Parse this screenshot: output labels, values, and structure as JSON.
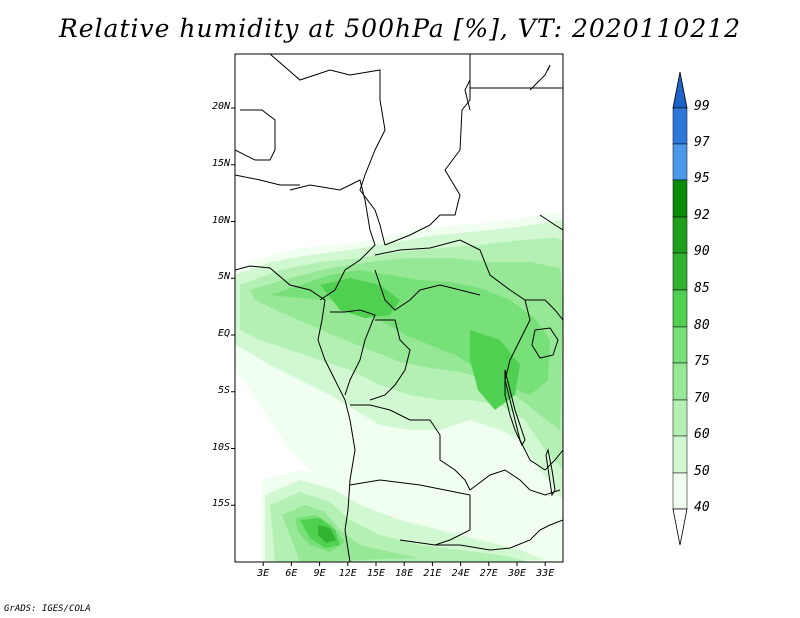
{
  "title": "Relative humidity at 500hPa [%], VT: 2020110212",
  "credit": "GrADS: IGES/COLA",
  "map": {
    "y_labels": [
      "20N",
      "15N",
      "10N",
      "5N",
      "EQ",
      "5S",
      "10S",
      "15S"
    ],
    "x_labels": [
      "3E",
      "6E",
      "9E",
      "12E",
      "15E",
      "18E",
      "21E",
      "24E",
      "27E",
      "30E",
      "33E"
    ],
    "lon_range": [
      0,
      35
    ],
    "lat_range": [
      -20,
      25
    ]
  },
  "colorbar": {
    "labels": [
      "99",
      "97",
      "95",
      "92",
      "90",
      "85",
      "80",
      "75",
      "70",
      "60",
      "50",
      "40"
    ],
    "colors": {
      "above_99": "#1e64c8",
      "97_99": "#2c78d8",
      "95_97": "#4a98e8",
      "92_95": "#0a8c0a",
      "90_92": "#1ea01e",
      "85_90": "#32b432",
      "80_85": "#50d050",
      "75_80": "#78e078",
      "70_75": "#96e896",
      "60_70": "#b4f0b4",
      "50_60": "#d2f8d2",
      "40_50": "#f0fff0",
      "below_40": "#ffffff"
    }
  }
}
